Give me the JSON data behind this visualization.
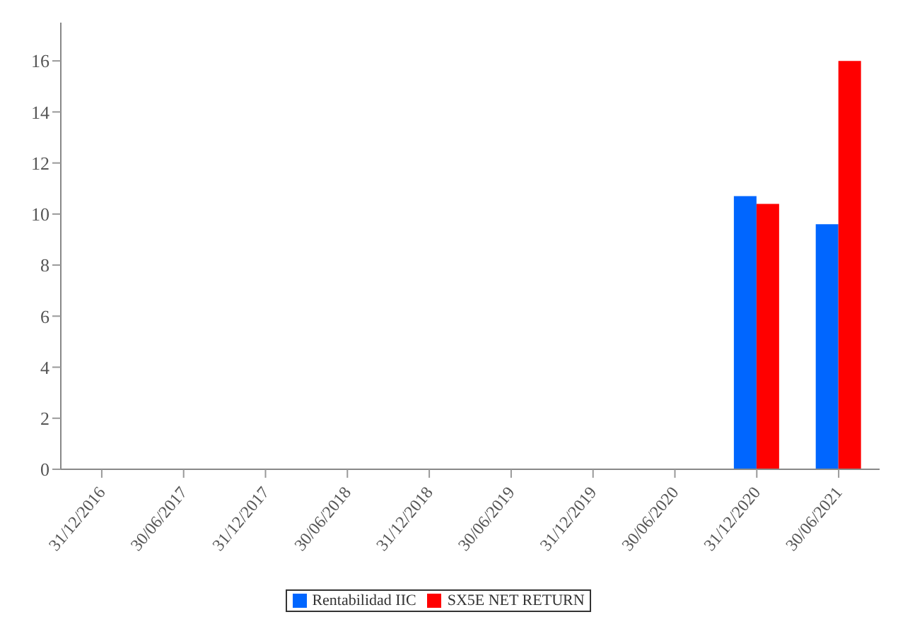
{
  "chart_data": {
    "type": "bar",
    "categories": [
      "31/12/2016",
      "30/06/2017",
      "31/12/2017",
      "30/06/2018",
      "31/12/2018",
      "30/06/2019",
      "31/12/2019",
      "30/06/2020",
      "31/12/2020",
      "30/06/2021"
    ],
    "series": [
      {
        "name": "Rentabilidad IIC",
        "color": "#0066ff",
        "values": [
          null,
          null,
          null,
          null,
          null,
          null,
          null,
          null,
          10.7,
          9.6
        ]
      },
      {
        "name": "SX5E NET RETURN",
        "color": "#ff0000",
        "values": [
          null,
          null,
          null,
          null,
          null,
          null,
          null,
          null,
          10.4,
          16.0
        ]
      }
    ],
    "ylim": [
      0,
      17.5
    ],
    "yticks": [
      0,
      2,
      4,
      6,
      8,
      10,
      12,
      14,
      16
    ],
    "grid": false,
    "legend": "bottom"
  }
}
